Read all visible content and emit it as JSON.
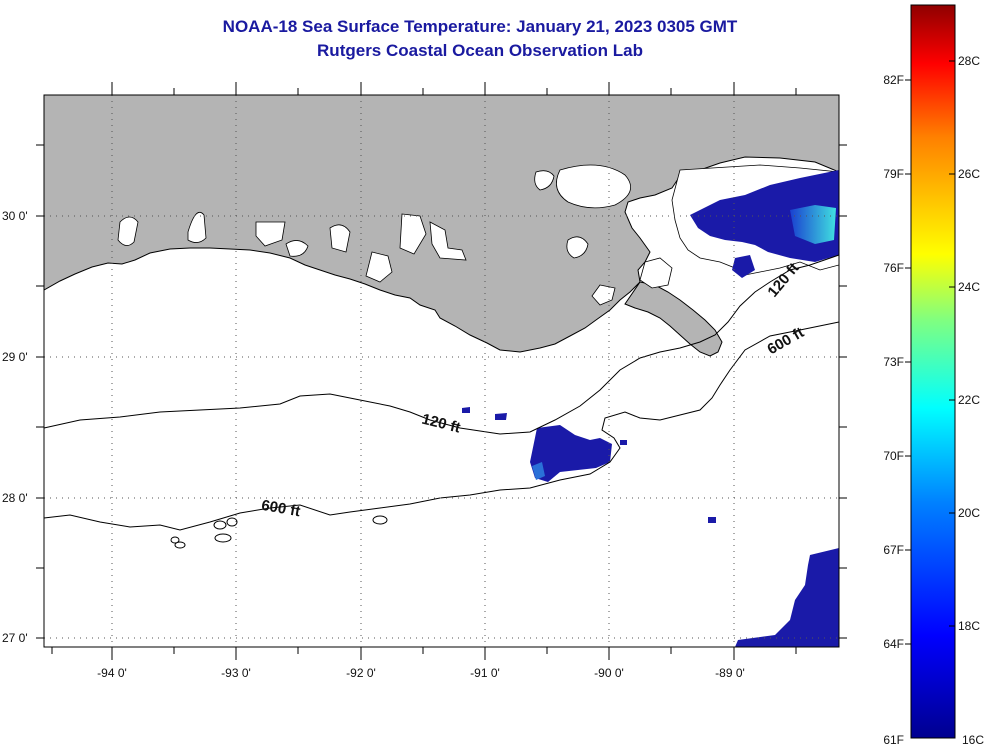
{
  "title_line1": "NOAA-18 Sea Surface Temperature:  January 21, 2023 0305 GMT",
  "title_line2": "Rutgers Coastal Ocean Observation Lab",
  "map": {
    "lon_labels": [
      "-94 0'",
      "-93 0'",
      "-92 0'",
      "-91 0'",
      "-90 0'",
      "-89 0'"
    ],
    "lat_labels": [
      "30 0'",
      "29 0'",
      "28 0'",
      "27 0'"
    ],
    "contour_labels": [
      "120 ft",
      "600 ft",
      "120 ft",
      "600 ft"
    ],
    "colors": {
      "land": "#b4b4b4",
      "cold_sst": "#1a1aa8",
      "coast": "#000000",
      "grid": "#555555"
    }
  },
  "colorbar": {
    "fahrenheit": [
      "82F",
      "79F",
      "76F",
      "73F",
      "70F",
      "67F",
      "64F",
      "61F"
    ],
    "celsius": [
      "28C",
      "26C",
      "24C",
      "22C",
      "20C",
      "18C",
      "16C"
    ]
  }
}
